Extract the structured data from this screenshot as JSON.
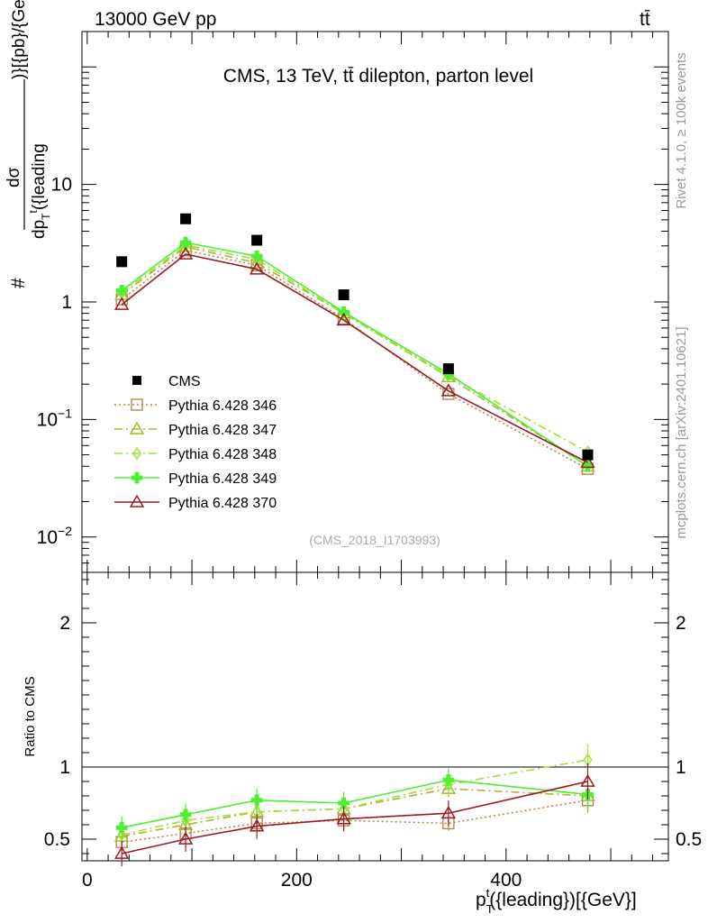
{
  "header": {
    "energy_label": "13000 GeV pp",
    "process_label": "tt̄"
  },
  "side_labels": {
    "rivet": "Rivet 4.1.0, ≥ 100k events",
    "mcplots": "mcplots.cern.ch [arXiv:2401.10621]"
  },
  "chart_data": {
    "type": "line",
    "title": "CMS, 13 TeV, tt̄ dilepton, parton level",
    "watermark": "(CMS_2018_I1703993)",
    "xlabel": "p_T^t({leading})[{GeV}]",
    "ylabel": "#dσ/dp_T^t({leading}))[{pb}/{GeV}]",
    "ylabel_ratio": "Ratio to CMS",
    "xlim": [
      -5,
      555
    ],
    "ylim": [
      0.005,
      200
    ],
    "yscale": "log",
    "ratio_ylim": [
      0.35,
      2.35
    ],
    "x_ticks": [
      "0",
      "200",
      "400"
    ],
    "y_ticks": [
      "10^-2",
      "10^-1",
      "1",
      "10"
    ],
    "ratio_ticks": [
      "0.5",
      "1",
      "2"
    ],
    "x": [
      33,
      94,
      162,
      245,
      345,
      478
    ],
    "data": {
      "name": "CMS",
      "values": [
        2.2,
        5.1,
        3.35,
        1.15,
        0.27,
        0.05
      ],
      "color": "#000000"
    },
    "series": [
      {
        "name": "Pythia 6.428 346",
        "color": "#b5874a",
        "dash": "2,3",
        "marker": "square",
        "values": [
          1.05,
          2.75,
          2.05,
          0.72,
          0.165,
          0.038
        ],
        "ratio": [
          0.48,
          0.54,
          0.61,
          0.63,
          0.61,
          0.77
        ]
      },
      {
        "name": "Pythia 6.428 347",
        "color": "#a8b535",
        "dash": "9,4,2,4",
        "marker": "triangle",
        "values": [
          1.15,
          2.95,
          2.15,
          0.8,
          0.23,
          0.04
        ],
        "ratio": [
          0.52,
          0.6,
          0.69,
          0.71,
          0.85,
          0.8
        ]
      },
      {
        "name": "Pythia 6.428 348",
        "color": "#9ee22f",
        "dash": "9,4,2,4",
        "marker": "diamond",
        "values": [
          1.2,
          3.05,
          2.3,
          0.8,
          0.235,
          0.053
        ],
        "ratio": [
          0.53,
          0.63,
          0.69,
          0.71,
          0.88,
          1.05
        ]
      },
      {
        "name": "Pythia 6.428 349",
        "color": "#4cf030",
        "dash": "",
        "marker": "cross",
        "values": [
          1.25,
          3.2,
          2.45,
          0.82,
          0.245,
          0.04
        ],
        "ratio": [
          0.58,
          0.67,
          0.77,
          0.75,
          0.91,
          0.81
        ]
      },
      {
        "name": "Pythia 6.428 370",
        "color": "#9b1b25",
        "dash": "",
        "marker": "triangle",
        "values": [
          0.95,
          2.55,
          1.9,
          0.7,
          0.175,
          0.043
        ],
        "ratio": [
          0.4,
          0.5,
          0.59,
          0.64,
          0.68,
          0.9
        ]
      }
    ],
    "legend_position": "lower-left"
  }
}
